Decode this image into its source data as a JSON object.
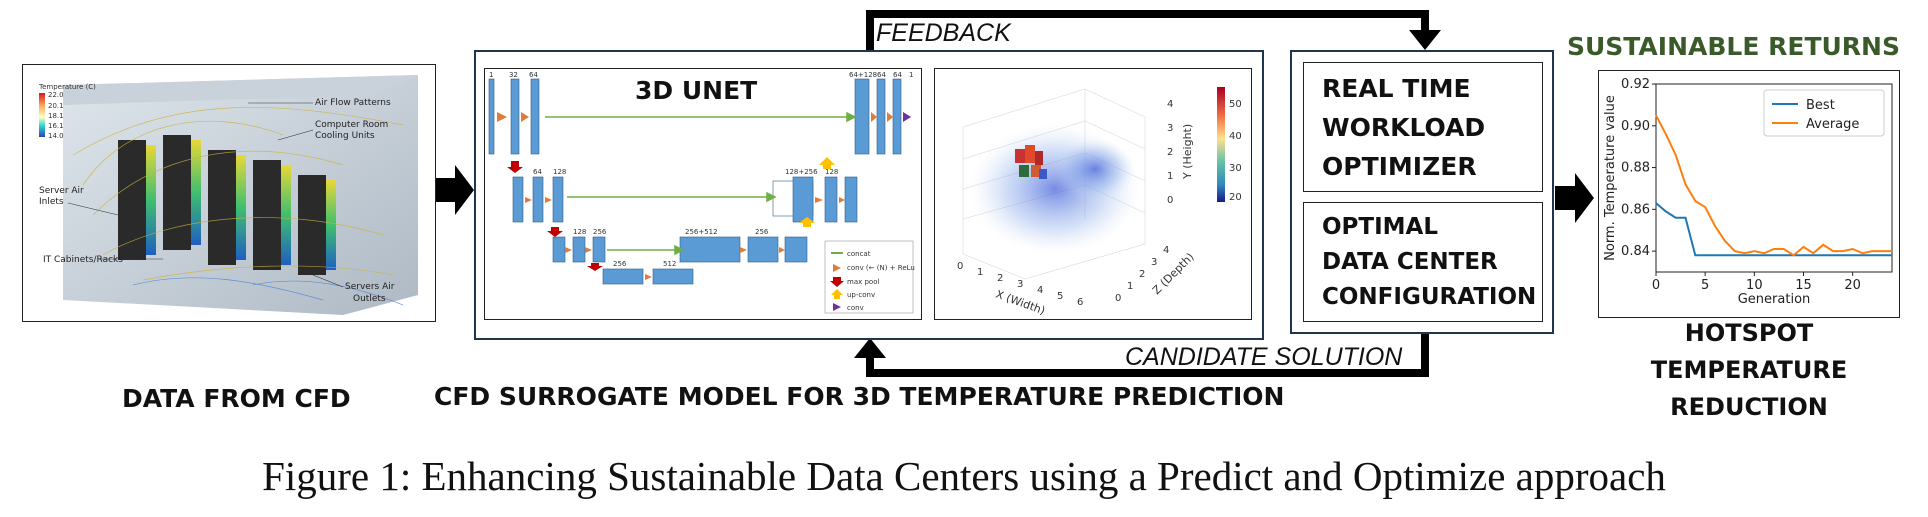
{
  "caption": "Figure 1: Enhancing Sustainable Data Centers using a Predict and Optimize approach",
  "labels": {
    "data_from_cfd": "DATA FROM CFD",
    "surrogate_model": "CFD SURROGATE MODEL FOR 3D TEMPERATURE PREDICTION",
    "feedback": "FEEDBACK",
    "candidate_solution": "CANDIDATE SOLUTION",
    "sustainable_returns": "SUSTAINABLE RETURNS",
    "hotspot_line1": "HOTSPOT",
    "hotspot_line2": "TEMPERATURE",
    "hotspot_line3": "REDUCTION"
  },
  "cfd_image": {
    "legend_title": "Temperature (C)",
    "legend_ticks": [
      "22.0",
      "20.1",
      "18.1",
      "16.1",
      "14.0"
    ],
    "annotations": [
      "Air Flow Patterns",
      "Computer Room",
      "Cooling Units",
      "Server Air",
      "Inlets",
      "IT Cabinets/Racks",
      "Servers Air",
      "Outlets"
    ]
  },
  "unet": {
    "title": "3D UNET",
    "top_labels": [
      "1",
      "32",
      "64",
      "64+128",
      "64",
      "64",
      "1"
    ],
    "level2_labels": [
      "64",
      "128",
      "128+256",
      "128"
    ],
    "level3_labels": [
      "128",
      "256",
      "256+512",
      "256"
    ],
    "level4_labels": [
      "256",
      "512"
    ],
    "legend": [
      "concat",
      "conv (← (N) + ReLu",
      "max pool",
      "up-conv",
      "conv"
    ]
  },
  "volume_plot": {
    "xlabel": "X (Width)",
    "ylabel": "Y (Height)",
    "zlabel": "Z (Depth)",
    "x_ticks": [
      "0",
      "1",
      "2",
      "3",
      "4",
      "5",
      "6"
    ],
    "y_ticks": [
      "0",
      "1",
      "2",
      "3",
      "4"
    ],
    "z_ticks": [
      "0",
      "1",
      "2",
      "3",
      "4"
    ],
    "colorbar_ticks": [
      "50",
      "40",
      "30",
      "20"
    ]
  },
  "optimizer": {
    "line1": "REAL TIME",
    "line2": "WORKLOAD",
    "line3": "OPTIMIZER"
  },
  "config": {
    "line1": "OPTIMAL",
    "line2": "DATA CENTER",
    "line3": "CONFIGURATION"
  },
  "chart_data": {
    "type": "line",
    "xlabel": "Generation",
    "ylabel": "Norm. Temperature value",
    "xlim": [
      0,
      24
    ],
    "ylim": [
      0.83,
      0.92
    ],
    "x_ticks": [
      0,
      5,
      10,
      15,
      20
    ],
    "y_ticks": [
      0.84,
      0.86,
      0.88,
      0.9,
      0.92
    ],
    "y_tick_labels": [
      "0.84",
      "0.86",
      "0.88",
      "0.90",
      "0.92"
    ],
    "legend_position": "top-right",
    "series": [
      {
        "name": "Best",
        "color": "#1f77b4",
        "x": [
          0,
          1,
          2,
          3,
          4,
          5,
          6,
          7,
          8,
          9,
          10,
          11,
          12,
          13,
          14,
          15,
          16,
          17,
          18,
          19,
          20,
          21,
          22,
          23,
          24
        ],
        "y": [
          0.863,
          0.859,
          0.856,
          0.856,
          0.838,
          0.838,
          0.838,
          0.838,
          0.838,
          0.838,
          0.838,
          0.838,
          0.838,
          0.838,
          0.838,
          0.838,
          0.838,
          0.838,
          0.838,
          0.838,
          0.838,
          0.838,
          0.838,
          0.838,
          0.838
        ]
      },
      {
        "name": "Average",
        "color": "#ff7f0e",
        "x": [
          0,
          1,
          2,
          3,
          4,
          5,
          6,
          7,
          8,
          9,
          10,
          11,
          12,
          13,
          14,
          15,
          16,
          17,
          18,
          19,
          20,
          21,
          22,
          23,
          24
        ],
        "y": [
          0.905,
          0.896,
          0.886,
          0.872,
          0.864,
          0.861,
          0.852,
          0.845,
          0.84,
          0.839,
          0.84,
          0.839,
          0.841,
          0.841,
          0.838,
          0.842,
          0.839,
          0.843,
          0.84,
          0.84,
          0.841,
          0.839,
          0.84,
          0.84,
          0.84
        ]
      }
    ]
  },
  "colors": {
    "frame": "#1f3550",
    "green_title": "#3a5a2a",
    "block_blue": "#5b9bd5",
    "arrow_orange": "#e07b39",
    "arrow_red": "#c00000",
    "arrow_green": "#70ad47",
    "arrow_yellow": "#ffc000",
    "arrow_purple": "#7030a0"
  }
}
